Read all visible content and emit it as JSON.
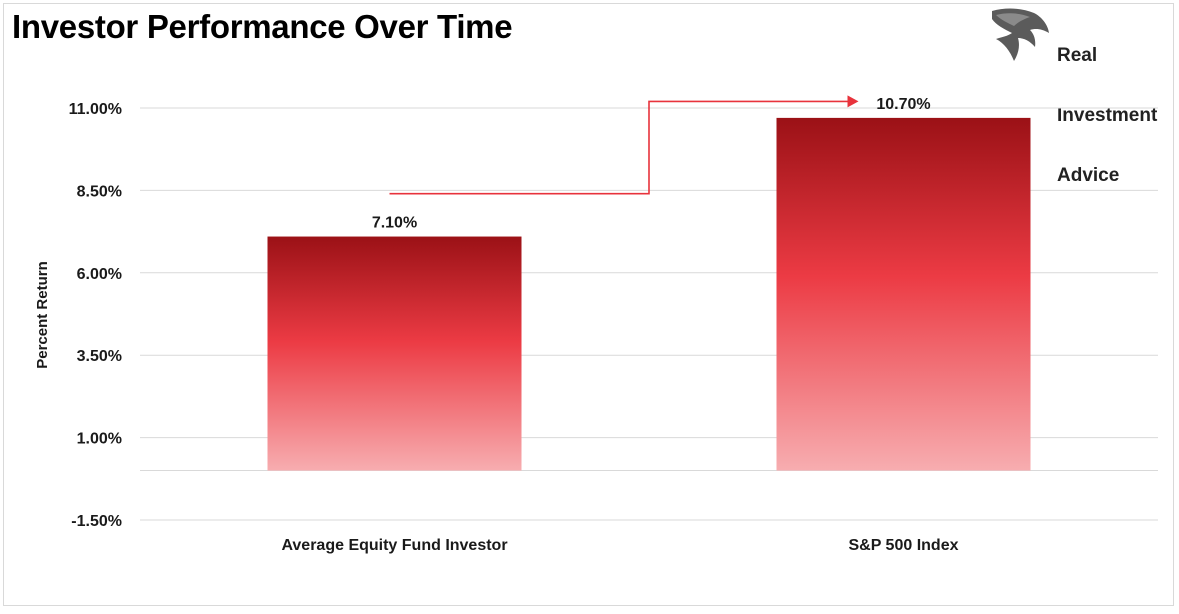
{
  "title": "Investor Performance Over Time",
  "logo": {
    "lines": [
      "Real",
      "Investment",
      "Advice"
    ],
    "icon": "eagle-head-icon"
  },
  "colors": {
    "bar_top": "#9b1116",
    "bar_mid": "#ec3b44",
    "bar_bottom": "#f7adb0",
    "arrow": "#e8333c",
    "grid": "#d9d9d9"
  },
  "chart_data": {
    "type": "bar",
    "categories": [
      "Average Equity Fund Investor",
      "S&P 500 Index"
    ],
    "values": [
      7.1,
      10.7
    ],
    "data_labels": [
      "7.10%",
      "10.70%"
    ],
    "xlabel": "",
    "ylabel": "Percent Return",
    "ylim": [
      -1.5,
      11.0
    ],
    "yticks": [
      -1.5,
      1.0,
      3.5,
      6.0,
      8.5,
      11.0
    ],
    "ytick_labels": [
      "-1.50%",
      "1.00%",
      "3.50%",
      "6.00%",
      "8.50%",
      "11.00%"
    ],
    "grid": true,
    "legend": "none",
    "annotation": "arrow from Average Equity Fund Investor level to S&P 500 Index level"
  }
}
